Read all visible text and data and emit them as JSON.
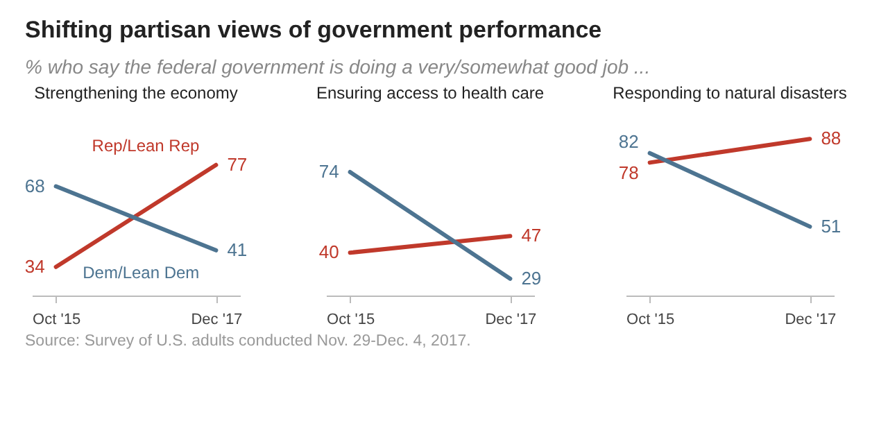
{
  "chart_data": [
    {
      "type": "other",
      "title": "Shifting partisan views of government performance",
      "subtitle": "% who say the federal government is doing a very/somewhat good job ...",
      "annotations": [
        "Source: Survey of U.S. adults conducted Nov. 29-Dec. 4, 2017."
      ]
    },
    {
      "type": "line",
      "title": "Strengthening the economy",
      "categories": [
        "Oct '15",
        "Dec '17"
      ],
      "data_labels": true,
      "series": [
        {
          "name": "Rep/Lean Rep",
          "color": "#c0392b",
          "values": [
            34,
            77
          ]
        },
        {
          "name": "Dem/Lean Dem",
          "color": "#4d7491",
          "values": [
            68,
            41
          ]
        }
      ]
    },
    {
      "type": "line",
      "title": "Ensuring access to health care",
      "categories": [
        "Oct '15",
        "Dec '17"
      ],
      "data_labels": true,
      "series": [
        {
          "color": "#c0392b",
          "values": [
            40,
            47
          ]
        },
        {
          "color": "#4d7491",
          "values": [
            74,
            29
          ]
        }
      ]
    },
    {
      "type": "line",
      "title": "Responding to natural disasters",
      "categories": [
        "Oct '15",
        "Dec '17"
      ],
      "data_labels": true,
      "series": [
        {
          "color": "#c0392b",
          "values": [
            78,
            88
          ]
        },
        {
          "color": "#4d7491",
          "values": [
            82,
            51
          ]
        }
      ]
    }
  ]
}
